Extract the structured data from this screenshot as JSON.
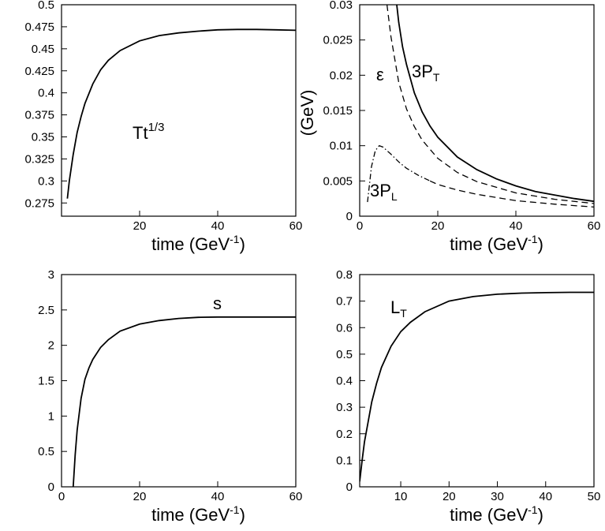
{
  "chart_data": [
    {
      "type": "line",
      "xlabel": "time (GeV",
      "xlabel_sup": "-1",
      "xlabel_end": ")",
      "xlim": [
        0,
        60
      ],
      "ylim": [
        0.26,
        0.5
      ],
      "xticks": [
        20,
        40,
        60
      ],
      "yticks": [
        0.275,
        0.3,
        0.325,
        0.35,
        0.375,
        0.4,
        0.425,
        0.45,
        0.475,
        0.5
      ],
      "annotation": {
        "text": "Tt",
        "sup": "1/3"
      },
      "series": [
        {
          "style": "solid",
          "x": [
            1.5,
            2,
            3,
            4,
            5,
            6,
            8,
            10,
            12,
            15,
            20,
            25,
            30,
            35,
            40,
            45,
            50,
            55,
            60
          ],
          "y": [
            0.28,
            0.3,
            0.33,
            0.355,
            0.373,
            0.388,
            0.41,
            0.426,
            0.437,
            0.448,
            0.459,
            0.465,
            0.468,
            0.47,
            0.4715,
            0.472,
            0.472,
            0.4715,
            0.471
          ]
        }
      ]
    },
    {
      "type": "line",
      "xlabel": "time (GeV",
      "xlabel_sup": "-1",
      "xlabel_end": ")",
      "ylabel": "(GeV)",
      "xlim": [
        0,
        60
      ],
      "ylim": [
        0,
        0.03
      ],
      "xticks": [
        0,
        20,
        40,
        60
      ],
      "yticks": [
        0,
        0.005,
        0.01,
        0.015,
        0.02,
        0.025,
        0.03
      ],
      "annotations": [
        {
          "text": "ε"
        },
        {
          "text": "3P",
          "sub": "T"
        },
        {
          "text": "3P",
          "sub": "L"
        }
      ],
      "series": [
        {
          "style": "solid",
          "x": [
            9.5,
            10,
            11,
            12,
            14,
            16,
            18,
            20,
            25,
            30,
            35,
            40,
            45,
            50,
            55,
            60
          ],
          "y": [
            0.03,
            0.0275,
            0.024,
            0.0215,
            0.0175,
            0.0148,
            0.0128,
            0.0112,
            0.0084,
            0.0066,
            0.0053,
            0.0043,
            0.0035,
            0.003,
            0.0025,
            0.0021
          ]
        },
        {
          "style": "dashed",
          "x": [
            7,
            8,
            10,
            12,
            14,
            16,
            20,
            25,
            30,
            40,
            50,
            60
          ],
          "y": [
            0.03,
            0.0255,
            0.019,
            0.0152,
            0.0127,
            0.0108,
            0.0082,
            0.0062,
            0.0049,
            0.0033,
            0.0024,
            0.0018
          ]
        },
        {
          "style": "dashdot",
          "x": [
            2,
            3,
            4,
            5,
            6,
            7,
            8,
            10,
            12,
            15,
            18
          ],
          "y": [
            0.002,
            0.007,
            0.0093,
            0.01,
            0.0098,
            0.0093,
            0.0088,
            0.0077,
            0.0068,
            0.0058,
            0.005
          ]
        },
        {
          "style": "dashed",
          "x": [
            18,
            20,
            25,
            30,
            40,
            50,
            60
          ],
          "y": [
            0.005,
            0.0045,
            0.0037,
            0.0031,
            0.0022,
            0.0017,
            0.0013
          ]
        }
      ]
    },
    {
      "type": "line",
      "xlabel": "time (GeV",
      "xlabel_sup": "-1",
      "xlabel_end": ")",
      "xlim": [
        0,
        60
      ],
      "ylim": [
        0,
        3
      ],
      "xticks": [
        0,
        20,
        40,
        60
      ],
      "yticks": [
        0,
        0.5,
        1,
        1.5,
        2,
        2.5,
        3
      ],
      "annotation": {
        "text": "s"
      },
      "series": [
        {
          "style": "solid",
          "x": [
            3,
            3.5,
            4,
            5,
            6,
            7,
            8,
            10,
            12,
            15,
            20,
            25,
            30,
            35,
            40,
            45,
            50,
            55,
            60
          ],
          "y": [
            0,
            0.45,
            0.8,
            1.25,
            1.52,
            1.68,
            1.8,
            1.97,
            2.08,
            2.2,
            2.3,
            2.35,
            2.38,
            2.395,
            2.4,
            2.4,
            2.4,
            2.4,
            2.4
          ]
        }
      ]
    },
    {
      "type": "line",
      "xlabel": "time (GeV",
      "xlabel_sup": "-1",
      "xlabel_end": ")",
      "xlim": [
        1.5,
        50
      ],
      "ylim": [
        0,
        0.8
      ],
      "xticks": [
        10,
        20,
        30,
        40,
        50
      ],
      "yticks": [
        0,
        0.1,
        0.2,
        0.3,
        0.4,
        0.5,
        0.6,
        0.7,
        0.8
      ],
      "annotation": {
        "text": "L",
        "sub": "T"
      },
      "series": [
        {
          "style": "solid",
          "x": [
            1.5,
            2,
            2.5,
            3,
            4,
            5,
            6,
            8,
            10,
            12,
            15,
            20,
            25,
            30,
            35,
            40,
            45,
            50
          ],
          "y": [
            0.02,
            0.1,
            0.17,
            0.22,
            0.32,
            0.39,
            0.45,
            0.53,
            0.585,
            0.62,
            0.66,
            0.7,
            0.717,
            0.726,
            0.73,
            0.732,
            0.733,
            0.733
          ]
        }
      ]
    }
  ]
}
